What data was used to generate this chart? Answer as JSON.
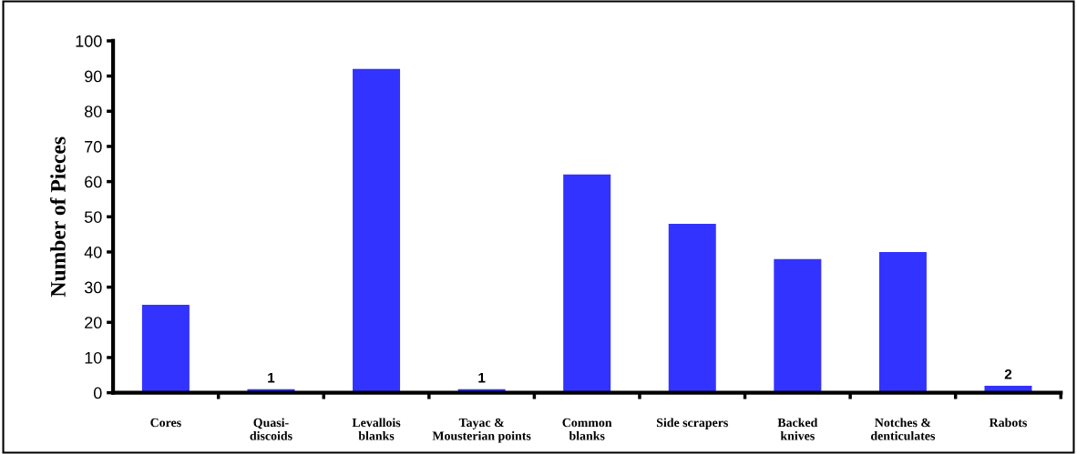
{
  "chart_data": {
    "type": "bar",
    "ylabel": "Number of Pieces",
    "categories": [
      "Cores",
      "Quasi-\ndiscoids",
      "Levallois\nblanks",
      "Tayac &\nMousterian points",
      "Common\nblanks",
      "Side scrapers",
      "Backed\nknives",
      "Notches &\ndenticulates",
      "Rabots"
    ],
    "values": [
      25,
      1,
      92,
      1,
      62,
      48,
      38,
      40,
      2
    ],
    "value_labels": [
      null,
      "1",
      null,
      "1",
      null,
      null,
      null,
      null,
      "2"
    ],
    "color": "#3333ff",
    "ylim": [
      0,
      100
    ],
    "yticks": [
      0,
      10,
      20,
      30,
      40,
      50,
      60,
      70,
      80,
      90,
      100
    ],
    "grid": false
  }
}
